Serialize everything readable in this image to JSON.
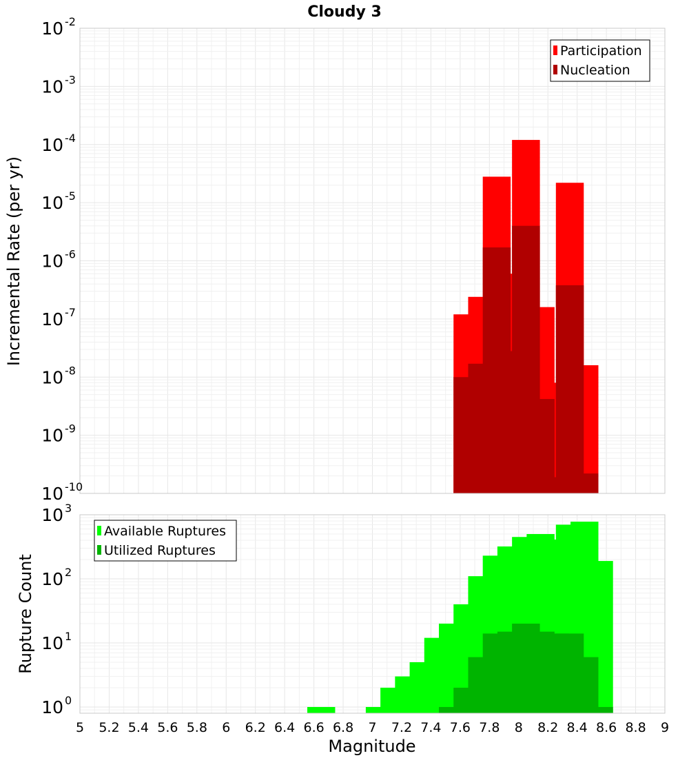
{
  "chart_data": [
    {
      "type": "bar",
      "title": "Cloudy 3",
      "xlabel": "Magnitude",
      "ylabel": "Incremental Rate (per yr)",
      "yscale": "log",
      "ylim": [
        1e-10,
        0.01
      ],
      "xlim": [
        5,
        9
      ],
      "x_ticks": [
        "5",
        "5.2",
        "5.4",
        "5.6",
        "5.8",
        "6",
        "6.2",
        "6.4",
        "6.6",
        "6.8",
        "7",
        "7.2",
        "7.4",
        "7.6",
        "7.8",
        "8",
        "8.2",
        "8.4",
        "8.6",
        "8.8",
        "9"
      ],
      "y_ticks": [
        {
          "base": "10",
          "exp": "-10"
        },
        {
          "base": "10",
          "exp": "-9"
        },
        {
          "base": "10",
          "exp": "-8"
        },
        {
          "base": "10",
          "exp": "-7"
        },
        {
          "base": "10",
          "exp": "-6"
        },
        {
          "base": "10",
          "exp": "-5"
        },
        {
          "base": "10",
          "exp": "-4"
        },
        {
          "base": "10",
          "exp": "-3"
        },
        {
          "base": "10",
          "exp": "-2"
        }
      ],
      "grid": true,
      "legend_position": "top-right",
      "x": [
        7.65,
        7.75,
        7.85,
        7.95,
        8.05,
        8.15,
        8.25,
        8.35,
        8.45
      ],
      "series": [
        {
          "name": "Participation",
          "color": "#ff0000",
          "values": [
            1.2e-07,
            2.4e-07,
            2.8e-05,
            6e-07,
            0.00012,
            1.6e-07,
            8e-09,
            2.2e-05,
            1.6e-08
          ]
        },
        {
          "name": "Nucleation",
          "color": "#b00000",
          "values": [
            1e-08,
            1.7e-08,
            1.7e-06,
            2.8e-08,
            4e-06,
            4.2e-09,
            1.9e-10,
            3.8e-07,
            2.2e-10
          ]
        }
      ]
    },
    {
      "type": "bar",
      "xlabel": "Magnitude",
      "ylabel": "Rupture Count",
      "yscale": "log",
      "ylim": [
        0.8,
        1000
      ],
      "xlim": [
        5,
        9
      ],
      "x_ticks": [
        "5",
        "5.2",
        "5.4",
        "5.6",
        "5.8",
        "6",
        "6.2",
        "6.4",
        "6.6",
        "6.8",
        "7",
        "7.2",
        "7.4",
        "7.6",
        "7.8",
        "8",
        "8.2",
        "8.4",
        "8.6",
        "8.8",
        "9"
      ],
      "y_ticks": [
        {
          "base": "10",
          "exp": "0"
        },
        {
          "base": "10",
          "exp": "1"
        },
        {
          "base": "10",
          "exp": "2"
        },
        {
          "base": "10",
          "exp": "3"
        }
      ],
      "grid": true,
      "legend_position": "top-left",
      "series": [
        {
          "name": "Available Ruptures",
          "color": "#00ff00",
          "x": [
            6.65,
            7.05,
            7.15,
            7.25,
            7.35,
            7.45,
            7.55,
            7.65,
            7.75,
            7.85,
            7.95,
            8.05,
            8.15,
            8.25,
            8.35,
            8.45,
            8.55
          ],
          "values": [
            1,
            1,
            2,
            3,
            5,
            12,
            20,
            40,
            110,
            230,
            320,
            450,
            500,
            410,
            700,
            780,
            190
          ]
        },
        {
          "name": "Utilized Ruptures",
          "color": "#00b400",
          "x": [
            7.55,
            7.65,
            7.75,
            7.85,
            7.95,
            8.05,
            8.15,
            8.25,
            8.35,
            8.45,
            8.55
          ],
          "values": [
            1,
            2,
            6,
            14,
            15,
            20,
            15,
            14,
            14,
            6,
            1
          ]
        }
      ]
    }
  ]
}
